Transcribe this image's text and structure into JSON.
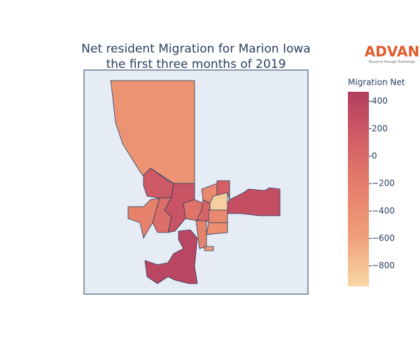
{
  "chart_data": {
    "type": "choropleth",
    "title": "Net resident Migration for Marion Iowa",
    "subtitle": "the first three months of 2019",
    "colorbar_title": "Migration Net",
    "values": [
      -450,
      180,
      230,
      -250,
      -50,
      -100,
      50,
      -350,
      100,
      -900,
      280,
      -350,
      -400,
      -250,
      380,
      -500
    ],
    "zlim": [
      -950,
      470
    ],
    "zticks": [
      400,
      200,
      0,
      {
        "value": -200,
        "label": "−200"
      },
      {
        "value": -400,
        "label": "−400"
      },
      {
        "value": -600,
        "label": "−600"
      },
      {
        "value": -800,
        "label": "−800"
      }
    ],
    "colorscale": [
      "#f7d7a6",
      "#f0a07a",
      "#e6806c",
      "#d35f66",
      "#b23d60"
    ]
  },
  "logo": {
    "name": "ADVAN",
    "tagline": "Research through Technology"
  }
}
